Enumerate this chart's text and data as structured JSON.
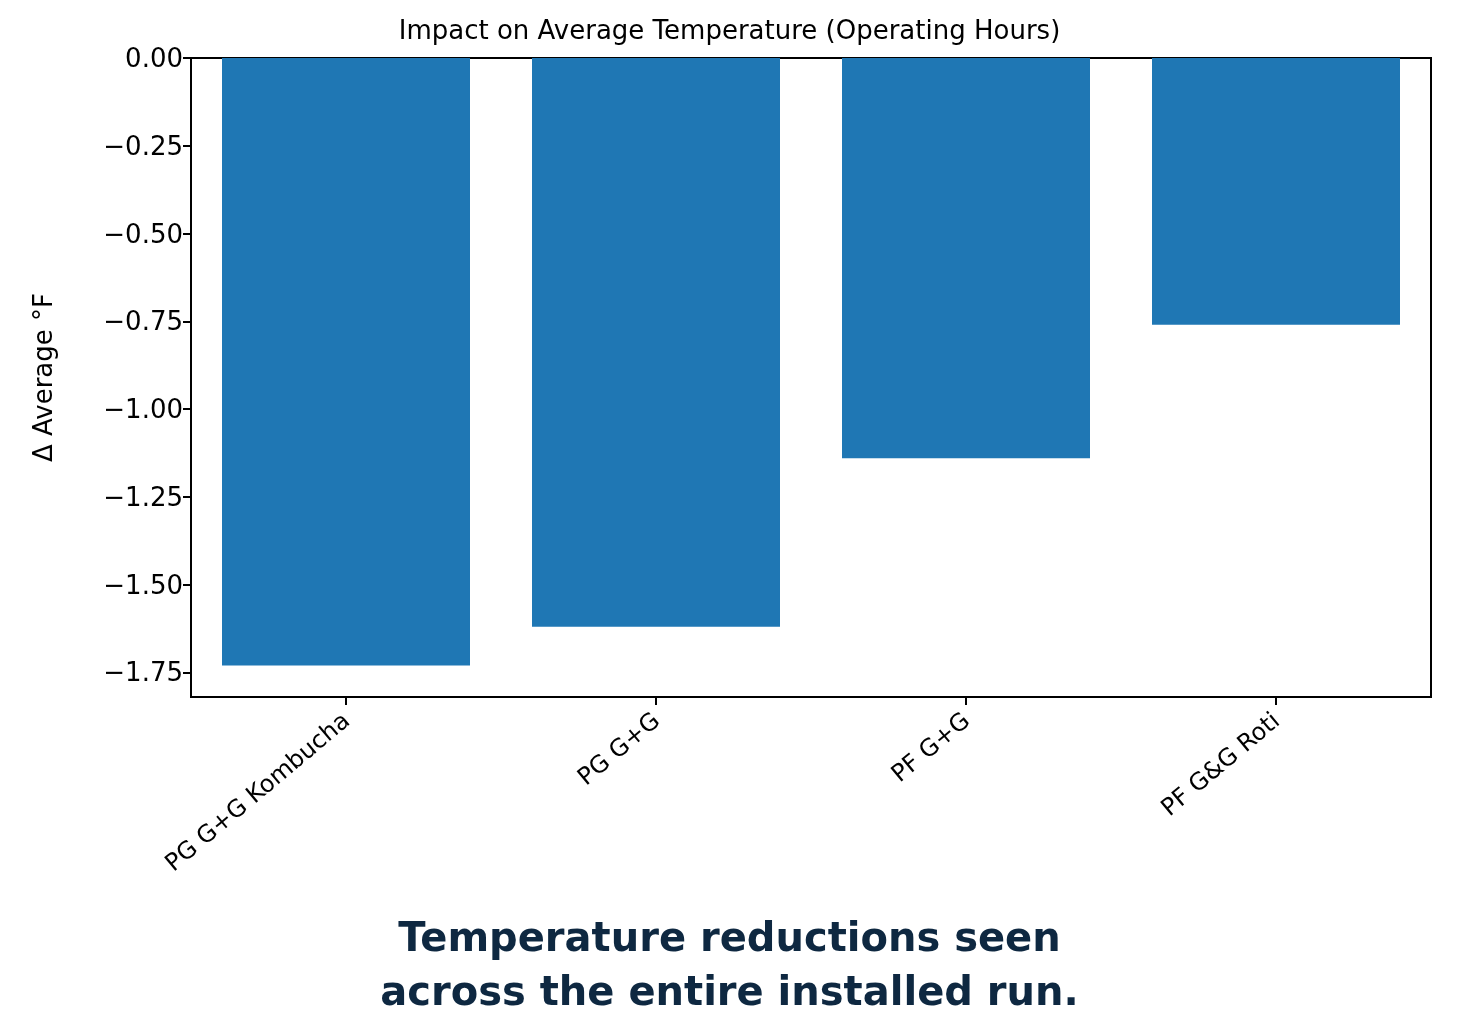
{
  "chart_data": {
    "type": "bar",
    "title": "Impact on Average Temperature (Operating Hours)",
    "ylabel": "Δ Average °F",
    "categories": [
      "PG G+G Kombucha",
      "PG G+G",
      "PF G+G",
      "PF G&G Roti"
    ],
    "values": [
      -1.73,
      -1.62,
      -1.14,
      -0.76
    ],
    "color": "#1f77b4",
    "ylim": [
      -1.82,
      0
    ],
    "yticks": [
      -1.75,
      {
        "value": -1.5,
        "label": "−1.50"
      },
      -1.25,
      {
        "value": -1,
        "label": "−1.00"
      },
      -0.75,
      {
        "value": -0.5,
        "label": "−0.50"
      },
      -0.25,
      {
        "value": 0,
        "label": "0.00"
      }
    ],
    "grid": false,
    "annotations": [
      "Temperature reductions seen\nacross the entire installed run."
    ]
  }
}
